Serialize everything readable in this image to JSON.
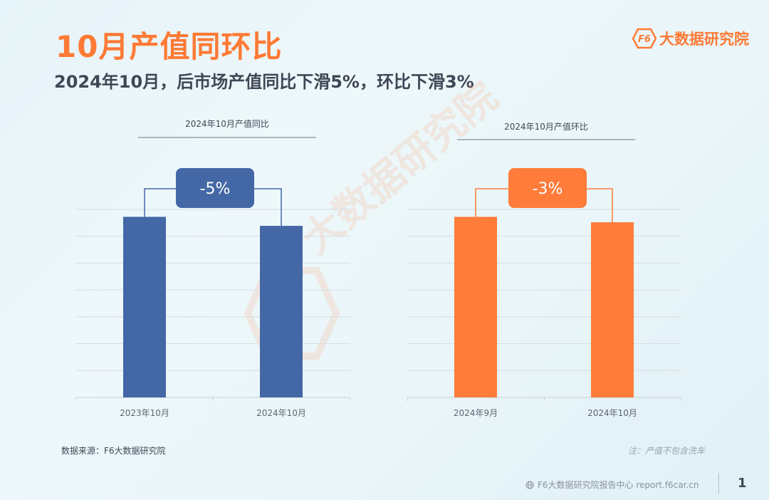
{
  "page": {
    "title": "10月产值同环比",
    "subtitle": "2024年10月，后市场产值同比下滑5%，环比下滑3%",
    "logo_text": "大数据研究院",
    "source": "数据来源：F6大数据研究院",
    "note": "注：产值不包含洗车",
    "footer_link": "F6大数据研究院报告中心 report.f6car.cn",
    "page_number": "1",
    "icons": {
      "logo": "f6-logo-icon",
      "footer": "globe-icon"
    }
  },
  "colors": {
    "title": "#ff7a35",
    "blue": "#4468a5",
    "orange": "#ff7c3b",
    "text": "#3f4756"
  },
  "chart_data": [
    {
      "type": "bar",
      "title": "2024年10月产值同比",
      "categories": [
        "2023年10月",
        "2024年10月"
      ],
      "values": [
        100,
        95
      ],
      "change_label": "-5%",
      "color": "#4468a5",
      "ylim": [
        0,
        112
      ],
      "grid": true
    },
    {
      "type": "bar",
      "title": "2024年10月产值环比",
      "categories": [
        "2024年9月",
        "2024年10月"
      ],
      "values": [
        100,
        97
      ],
      "change_label": "-3%",
      "color": "#ff7c3b",
      "ylim": [
        0,
        112
      ],
      "grid": true
    }
  ]
}
